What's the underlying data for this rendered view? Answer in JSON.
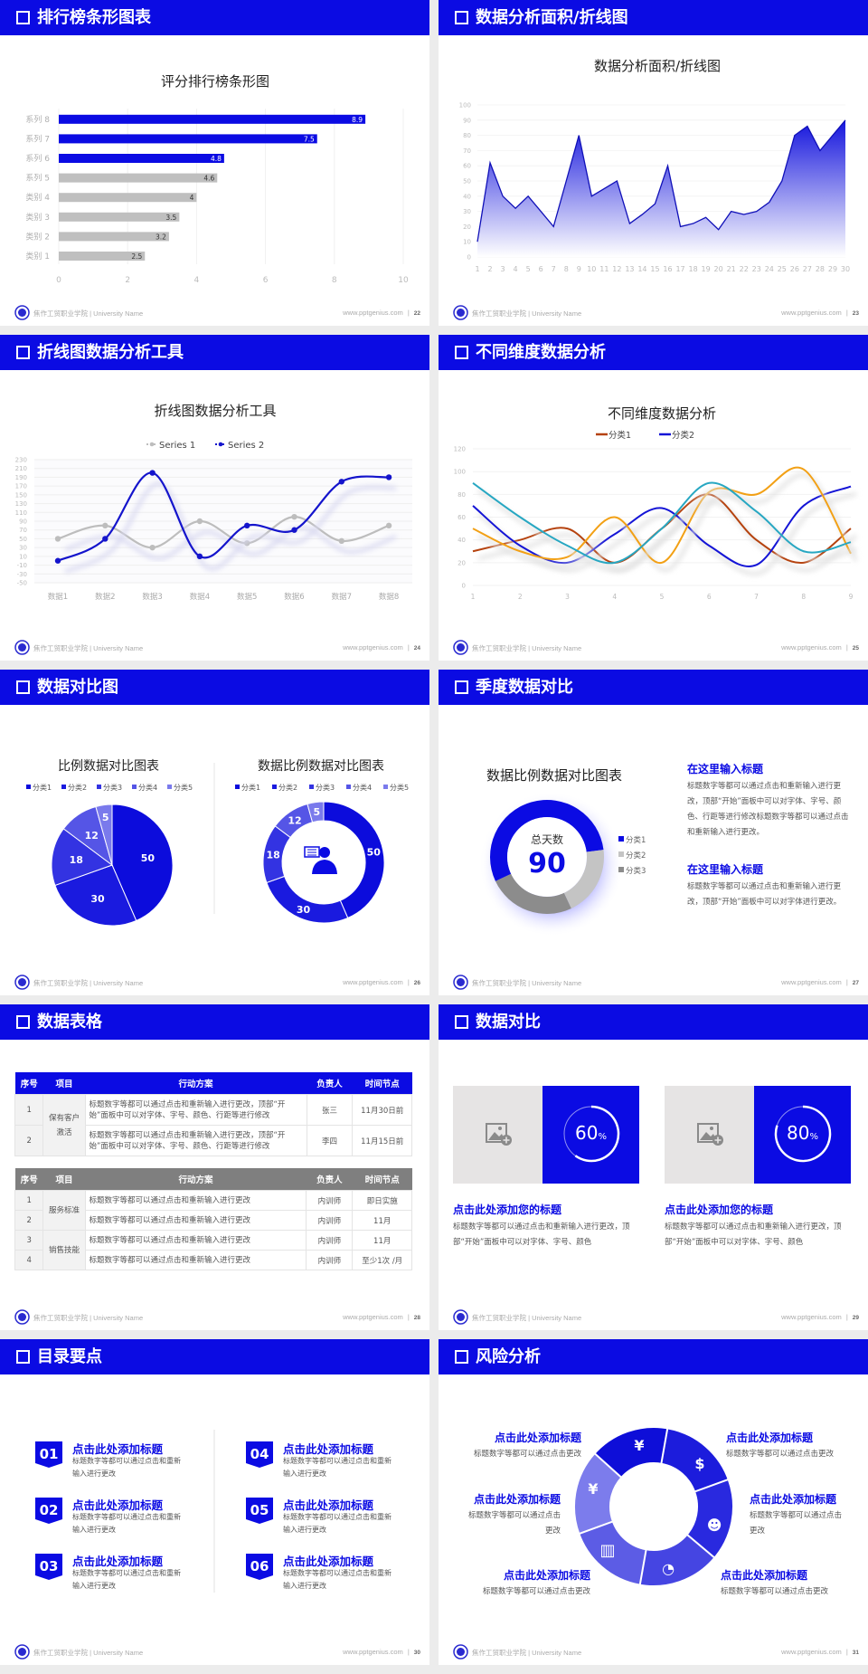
{
  "theme": {
    "primary": "#0b0be3",
    "bar_gray": "#bfbfbf",
    "background": "#ececec"
  },
  "footer": {
    "school": "焦作工贸职业学院 | University Name",
    "site": "www.pptgenius.com",
    "separator": "|"
  },
  "slides": [
    {
      "title": "排行榜条形图表",
      "page": "22"
    },
    {
      "title": "数据分析面积/折线图",
      "page": "23"
    },
    {
      "title": "折线图数据分析工具",
      "page": "24"
    },
    {
      "title": "不同维度数据分析",
      "page": "25"
    },
    {
      "title": "数据对比图",
      "page": "26"
    },
    {
      "title": "季度数据对比",
      "page": "27",
      "blocks": [
        {
          "heading": "在这里输入标题",
          "text": "标题数字等都可以通过点击和重新输入进行更改，顶部“开始”面板中可以对字体、字号、颜色、行距等进行修改标题数字等都可以通过点击和重新输入进行更改。"
        },
        {
          "heading": "在这里输入标题",
          "text": "标题数字等都可以通过点击和重新输入进行更改，顶部“开始”面板中可以对字体进行更改。"
        }
      ]
    },
    {
      "title": "数据表格",
      "page": "28",
      "tables": [
        {
          "headers": [
            "序号",
            "项目",
            "行动方案",
            "负责人",
            "时间节点"
          ],
          "header_color": "#0b0be3",
          "groups": [
            {
              "project": "保有客户激活",
              "rows": [
                [
                  "1",
                  "标题数字等都可以通过点击和重新输入进行更改，顶部“开始”面板中可以对字体、字号、颜色、行距等进行修改",
                  "张三",
                  "11月30日前"
                ],
                [
                  "2",
                  "标题数字等都可以通过点击和重新输入进行更改，顶部“开始”面板中可以对字体、字号、颜色、行距等进行修改",
                  "李四",
                  "11月15日前"
                ]
              ]
            }
          ]
        },
        {
          "headers": [
            "序号",
            "项目",
            "行动方案",
            "负责人",
            "时间节点"
          ],
          "header_color": "#7f7f7f",
          "groups": [
            {
              "project": "服务标准",
              "rows": [
                [
                  "1",
                  "标题数字等都可以通过点击和重新输入进行更改",
                  "内训师",
                  "即日实施"
                ],
                [
                  "2",
                  "标题数字等都可以通过点击和重新输入进行更改",
                  "内训师",
                  "11月"
                ]
              ]
            },
            {
              "project": "销售技能",
              "rows": [
                [
                  "3",
                  "标题数字等都可以通过点击和重新输入进行更改",
                  "内训师",
                  "11月"
                ],
                [
                  "4",
                  "标题数字等都可以通过点击和重新输入进行更改",
                  "内训师",
                  "至少1次 /月"
                ]
              ]
            }
          ]
        }
      ]
    },
    {
      "title": "数据对比",
      "page": "29",
      "cards": [
        {
          "percent": 60,
          "value": "60",
          "unit": "%",
          "heading": "点击此处添加您的标题",
          "text": "标题数字等都可以通过点击和重新输入进行更改，顶部“开始”面板中可以对字体、字号、颜色",
          "icon": "image-placeholder-icon"
        },
        {
          "percent": 80,
          "value": "80",
          "unit": "%",
          "heading": "点击此处添加您的标题",
          "text": "标题数字等都可以通过点击和重新输入进行更改，顶部“开始”面板中可以对字体、字号、颜色",
          "icon": "image-placeholder-icon"
        }
      ]
    },
    {
      "title": "目录要点",
      "page": "30",
      "items": [
        {
          "num": "01",
          "title": "点击此处添加标题",
          "text": "标题数字等都可以通过点击和重新输入进行更改"
        },
        {
          "num": "02",
          "title": "点击此处添加标题",
          "text": "标题数字等都可以通过点击和重新输入进行更改"
        },
        {
          "num": "03",
          "title": "点击此处添加标题",
          "text": "标题数字等都可以通过点击和重新输入进行更改"
        },
        {
          "num": "04",
          "title": "点击此处添加标题",
          "text": "标题数字等都可以通过点击和重新输入进行更改"
        },
        {
          "num": "05",
          "title": "点击此处添加标题",
          "text": "标题数字等都可以通过点击和重新输入进行更改"
        },
        {
          "num": "06",
          "title": "点击此处添加标题",
          "text": "标题数字等都可以通过点击和重新输入进行更改"
        }
      ]
    },
    {
      "title": "风险分析",
      "page": "31",
      "items": [
        {
          "title": "点击此处添加标题",
          "text": "标题数字等都可以通过点击更改",
          "icon": "money-bag-icon"
        },
        {
          "title": "点击此处添加标题",
          "text": "标题数字等都可以通过点击更改",
          "icon": "coins-icon"
        },
        {
          "title": "点击此处添加标题",
          "text": "标题数字等都可以通过点击更改",
          "icon": "people-icon"
        },
        {
          "title": "点击此处添加标题",
          "text": "标题数字等都可以通过点击更改",
          "icon": "pie-chart-icon"
        },
        {
          "title": "点击此处添加标题",
          "text": "标题数字等都可以通过点击更改",
          "icon": "building-icon"
        },
        {
          "title": "点击此处添加标题",
          "text": "标题数字等都可以通过点击更改",
          "icon": "hand-money-icon"
        }
      ]
    }
  ],
  "chart_data": [
    {
      "type": "bar",
      "orientation": "horizontal",
      "title": "评分排行榜条形图",
      "categories": [
        "类别 1",
        "类别 2",
        "类别 3",
        "类别 4",
        "系列 5",
        "系列 6",
        "系列 7",
        "系列 8"
      ],
      "values": [
        2.5,
        3.2,
        3.5,
        4,
        4.6,
        4.8,
        7.5,
        8.9
      ],
      "xlim": [
        0,
        10
      ],
      "xticks": [
        0,
        2,
        4,
        6,
        8,
        10
      ],
      "grid": true,
      "colors": [
        "#bfbfbf",
        "#bfbfbf",
        "#bfbfbf",
        "#bfbfbf",
        "#bfbfbf",
        "#0b0be3",
        "#0b0be3",
        "#0b0be3"
      ]
    },
    {
      "type": "area",
      "title": "数据分析面积/折线图",
      "x": [
        1,
        2,
        3,
        4,
        5,
        6,
        7,
        8,
        9,
        10,
        11,
        12,
        13,
        14,
        15,
        16,
        17,
        18,
        19,
        20,
        21,
        22,
        23,
        24,
        25,
        26,
        27,
        28,
        29,
        30
      ],
      "values": [
        10,
        62,
        40,
        32,
        40,
        30,
        20,
        50,
        80,
        40,
        45,
        50,
        22,
        28,
        35,
        60,
        20,
        22,
        26,
        18,
        30,
        28,
        30,
        36,
        50,
        80,
        86,
        70,
        80,
        90
      ],
      "ylim": [
        0,
        100
      ],
      "yticks": [
        0,
        10,
        20,
        30,
        40,
        50,
        60,
        70,
        80,
        90,
        100
      ],
      "color": "#1010d0"
    },
    {
      "type": "line",
      "title": "折线图数据分析工具",
      "smooth": true,
      "categories": [
        "数据1",
        "数据2",
        "数据3",
        "数据4",
        "数据5",
        "数据6",
        "数据7",
        "数据8"
      ],
      "series": [
        {
          "name": "Series 1",
          "values": [
            50,
            80,
            30,
            90,
            40,
            100,
            45,
            80
          ],
          "color": "#bdbdbd"
        },
        {
          "name": "Series 2",
          "values": [
            0,
            50,
            200,
            10,
            80,
            70,
            180,
            190
          ],
          "color": "#1414cc"
        }
      ],
      "ylim": [
        -50,
        230
      ],
      "yticks": [
        -50,
        -30,
        -10,
        10,
        30,
        50,
        70,
        90,
        110,
        130,
        150,
        170,
        190,
        210,
        230
      ],
      "legend": "top"
    },
    {
      "type": "line",
      "title": "不同维度数据分析",
      "smooth": true,
      "x": [
        1,
        2,
        3,
        4,
        5,
        6,
        7,
        8,
        9
      ],
      "series": [
        {
          "name": "分类1",
          "values": [
            30,
            40,
            50,
            20,
            50,
            80,
            40,
            20,
            50
          ],
          "color": "#b5420e"
        },
        {
          "name": "分类2",
          "values": [
            70,
            35,
            20,
            45,
            68,
            35,
            18,
            70,
            87
          ],
          "color": "#1414d6"
        },
        {
          "values": [
            50,
            30,
            25,
            60,
            20,
            82,
            80,
            102,
            28
          ],
          "color": "#f2a015"
        },
        {
          "values": [
            90,
            60,
            35,
            20,
            50,
            90,
            65,
            30,
            38
          ],
          "color": "#27a7c2"
        }
      ],
      "ylim": [
        0,
        120
      ],
      "yticks": [
        0,
        20,
        40,
        60,
        80,
        100,
        120
      ],
      "legend": "top"
    },
    {
      "type": "pie",
      "title": "比例数据对比图表",
      "categories": [
        "分类1",
        "分类2",
        "分类3",
        "分类4",
        "分类5"
      ],
      "values": [
        50,
        30,
        18,
        12,
        5
      ],
      "colors": [
        "#0c0cdc",
        "#1a1adf",
        "#3333e2",
        "#5555e6",
        "#7a7aec"
      ],
      "legend": "top"
    },
    {
      "type": "pie",
      "variant": "donut",
      "title": "数据比例数据对比图表",
      "categories": [
        "分类1",
        "分类2",
        "分类3",
        "分类4",
        "分类5"
      ],
      "values": [
        50,
        30,
        18,
        12,
        5
      ],
      "colors": [
        "#0c0cdc",
        "#1a1adf",
        "#3333e2",
        "#5555e6",
        "#7a7aec"
      ],
      "legend": "top",
      "center_icon": "customer-service-person-icon"
    },
    {
      "type": "pie",
      "variant": "donut",
      "title": "数据比例数据对比图表",
      "categories": [
        "分类1",
        "分类2",
        "分类3"
      ],
      "values": [
        55,
        20,
        25
      ],
      "colors": [
        "#0b0be3",
        "#c4c4c4",
        "#8c8c8c"
      ],
      "legend": "right",
      "center_label": "总天数",
      "center_value": "90"
    }
  ]
}
